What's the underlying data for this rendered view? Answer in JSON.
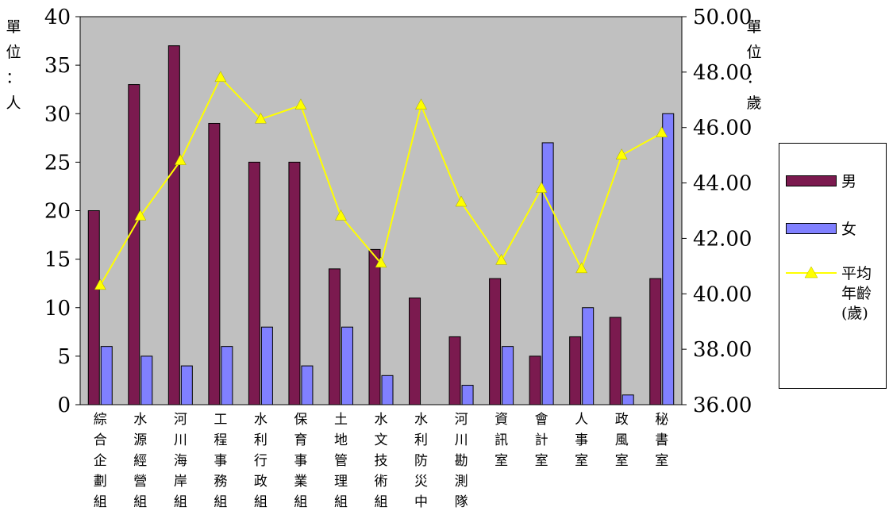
{
  "chart_data": {
    "type": "bar",
    "left_axis": {
      "unit_label": "單位：人",
      "ylim": [
        0,
        40
      ],
      "ticks": [
        "0",
        "5",
        "10",
        "15",
        "20",
        "25",
        "30",
        "35",
        "40"
      ]
    },
    "right_axis": {
      "unit_label": "單位：歲",
      "ylim": [
        36,
        50
      ],
      "ticks": [
        "36.00",
        "38.00",
        "40.00",
        "42.00",
        "44.00",
        "46.00",
        "48.00",
        "50.00"
      ]
    },
    "categories": [
      "綜合企劃組",
      "水源經營組",
      "河川海岸組",
      "工程事務組",
      "水利行政組",
      "保育事業組",
      "土地管理組",
      "水文技術組",
      "水利防災中",
      "河川勘測隊",
      "資訊室",
      "會計室",
      "人事室",
      "政風室",
      "秘書室"
    ],
    "series": [
      {
        "name": "男",
        "type": "bar",
        "color": "#7b1a4f",
        "axis": "left",
        "values": [
          20,
          33,
          37,
          29,
          25,
          25,
          14,
          16,
          11,
          7,
          13,
          5,
          7,
          9,
          13
        ]
      },
      {
        "name": "女",
        "type": "bar",
        "color": "#8080ff",
        "axis": "left",
        "values": [
          6,
          5,
          4,
          6,
          8,
          4,
          8,
          3,
          0,
          2,
          6,
          27,
          10,
          1,
          30
        ]
      },
      {
        "name": "平均年齡(歲)",
        "type": "line",
        "color": "#ffff00",
        "marker": "triangle",
        "axis": "right",
        "values": [
          40.3,
          42.8,
          44.8,
          47.8,
          46.3,
          46.8,
          42.8,
          41.1,
          46.8,
          43.3,
          41.2,
          43.8,
          40.9,
          45.0,
          45.8
        ]
      }
    ],
    "plot_background": "#c0c0c0",
    "legend_position": "right"
  },
  "legend": {
    "male": "男",
    "female": "女",
    "avg_age": "平均年齡(歲)"
  }
}
